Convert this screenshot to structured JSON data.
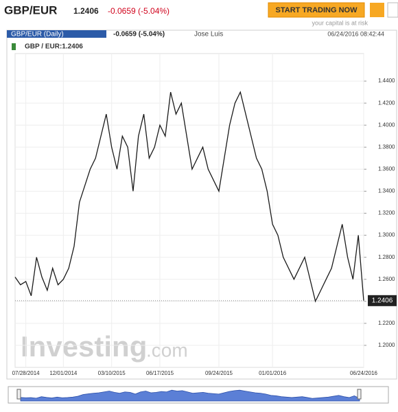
{
  "header": {
    "symbol": "GBP/EUR",
    "price": "1.2406",
    "change": "-0.0659 (-5.04%)",
    "button": "START TRADING NOW",
    "risk_note": "your capital is at risk"
  },
  "panel": {
    "title": "GBP/EUR (Daily)",
    "change": "-0.0659 (-5.04%)",
    "user": "Jose Luis",
    "timestamp": "06/24/2016 08:42:44",
    "legend": "GBP / EUR:1.2406",
    "watermark_brand": "Investing",
    "watermark_suffix": ".com"
  },
  "chart_data": {
    "type": "line",
    "color": "#1a1a1a",
    "values": [
      1.262,
      1.255,
      1.258,
      1.245,
      1.28,
      1.262,
      1.25,
      1.27,
      1.255,
      1.26,
      1.27,
      1.29,
      1.33,
      1.345,
      1.36,
      1.37,
      1.39,
      1.41,
      1.38,
      1.36,
      1.39,
      1.38,
      1.34,
      1.39,
      1.41,
      1.37,
      1.38,
      1.4,
      1.39,
      1.43,
      1.41,
      1.42,
      1.39,
      1.36,
      1.37,
      1.38,
      1.36,
      1.35,
      1.34,
      1.37,
      1.4,
      1.42,
      1.43,
      1.41,
      1.39,
      1.37,
      1.36,
      1.34,
      1.31,
      1.3,
      1.28,
      1.27,
      1.26,
      1.27,
      1.28,
      1.26,
      1.24,
      1.25,
      1.26,
      1.27,
      1.29,
      1.31,
      1.28,
      1.26,
      1.3,
      1.2406
    ],
    "xlim": [
      0,
      65
    ],
    "xticks": [
      {
        "value": 2,
        "label": "07/28/2014"
      },
      {
        "value": 9,
        "label": "12/01/2014"
      },
      {
        "value": 18,
        "label": "03/10/2015"
      },
      {
        "value": 27,
        "label": "06/17/2015"
      },
      {
        "value": 38,
        "label": "09/24/2015"
      },
      {
        "value": 48,
        "label": "01/01/2016"
      },
      {
        "value": 65,
        "label": "06/24/2016"
      }
    ],
    "ylim": [
      1.18,
      1.465
    ],
    "yticks": [
      {
        "value": 1.2,
        "label": "1.2000"
      },
      {
        "value": 1.22,
        "label": "1.2200"
      },
      {
        "value": 1.24,
        "label": "1.2400"
      },
      {
        "value": 1.26,
        "label": "1.2600"
      },
      {
        "value": 1.28,
        "label": "1.2800"
      },
      {
        "value": 1.3,
        "label": "1.3000"
      },
      {
        "value": 1.32,
        "label": "1.3200"
      },
      {
        "value": 1.34,
        "label": "1.3400"
      },
      {
        "value": 1.36,
        "label": "1.3600"
      },
      {
        "value": 1.38,
        "label": "1.3800"
      },
      {
        "value": 1.4,
        "label": "1.4000"
      },
      {
        "value": 1.42,
        "label": "1.4200"
      },
      {
        "value": 1.44,
        "label": "1.4400"
      }
    ],
    "last_price": {
      "value": 1.2406,
      "label": "1.2406"
    },
    "grid": true
  }
}
